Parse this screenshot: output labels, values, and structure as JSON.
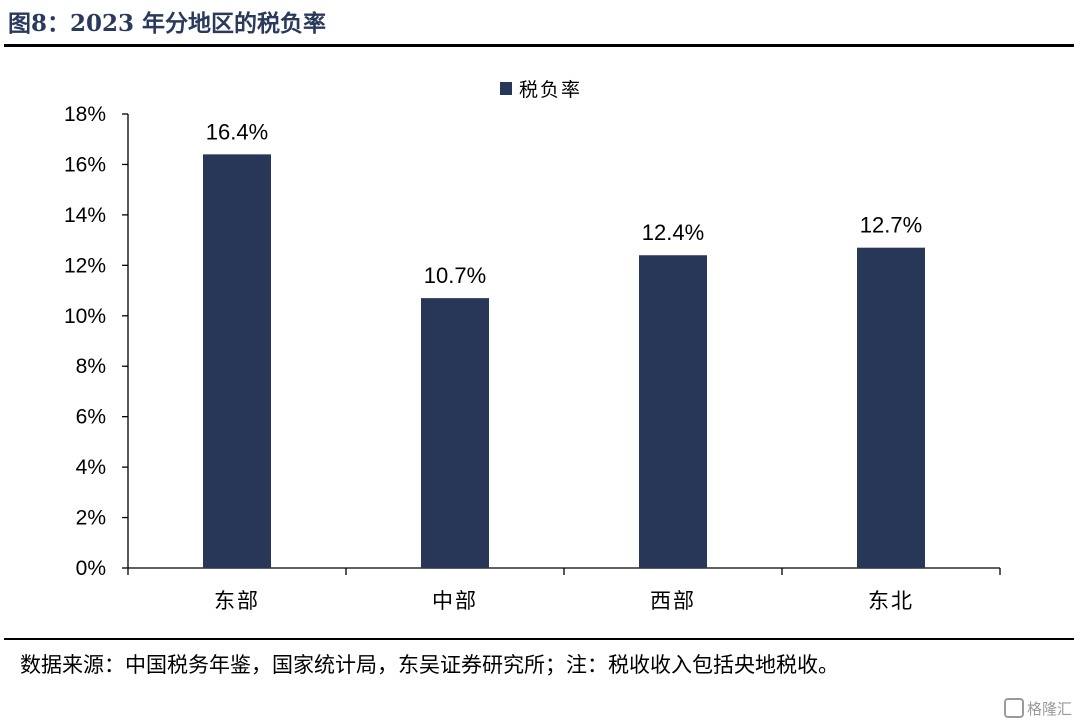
{
  "figure": {
    "title": "图8：2023 年分地区的税负率",
    "source_note": "数据来源：中国税务年鉴，国家统计局，东吴证券研究所；注：税收收入包括央地税收。",
    "watermark": "格隆汇"
  },
  "chart_data": {
    "type": "bar",
    "categories": [
      "东部",
      "中部",
      "西部",
      "东北"
    ],
    "series": [
      {
        "name": "税负率",
        "values": [
          16.4,
          10.7,
          12.4,
          12.7
        ],
        "color": "#283657"
      }
    ],
    "data_labels": [
      "16.4%",
      "10.7%",
      "12.4%",
      "12.7%"
    ],
    "ylim": [
      0,
      18
    ],
    "yticks": [
      "0%",
      "2%",
      "4%",
      "6%",
      "8%",
      "10%",
      "12%",
      "14%",
      "16%",
      "18%"
    ],
    "ytick_values": [
      0,
      2,
      4,
      6,
      8,
      10,
      12,
      14,
      16,
      18
    ],
    "legend_position": "top-center",
    "grid": false
  }
}
